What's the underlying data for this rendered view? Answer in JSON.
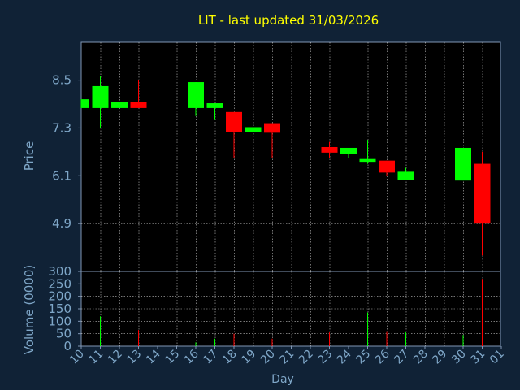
{
  "colors": {
    "background": "#102236",
    "plot_background": "#000000",
    "frame": "#7f96b4",
    "grid": "#ffffff",
    "title": "#ffff00",
    "labels": "#7fa7c8",
    "up": "#00ff00",
    "down": "#ff0000"
  },
  "chart_data": {
    "type": "candlestick",
    "title": "LIT - last updated 31/03/2026",
    "xlabel": "Day",
    "ylabel_price": "Price",
    "ylabel_volume": "Volume (0000)",
    "price_ticks": [
      "4.9",
      "6.1",
      "7.3",
      "8.5"
    ],
    "price_range": [
      3.7,
      9.45
    ],
    "volume_ticks": [
      "0",
      "50",
      "100",
      "150",
      "200",
      "250",
      "300"
    ],
    "volume_range": [
      0,
      300
    ],
    "grid": true,
    "x_ticks": [
      "10",
      "11",
      "12",
      "13",
      "14",
      "15",
      "16",
      "17",
      "18",
      "19",
      "20",
      "21",
      "22",
      "23",
      "24",
      "25",
      "26",
      "27",
      "28",
      "29",
      "30",
      "31",
      "01"
    ],
    "candles": [
      {
        "day": "10",
        "open": 7.8,
        "close": 8.02,
        "high": 8.02,
        "low": 7.8,
        "volume": 0
      },
      {
        "day": "11",
        "open": 7.8,
        "close": 8.35,
        "high": 8.6,
        "low": 7.3,
        "volume": 120
      },
      {
        "day": "12",
        "open": 7.8,
        "close": 7.95,
        "high": 7.95,
        "low": 7.8,
        "volume": 0
      },
      {
        "day": "13",
        "open": 7.95,
        "close": 7.8,
        "high": 8.5,
        "low": 7.8,
        "volume": 65
      },
      {
        "day": "16",
        "open": 7.8,
        "close": 8.45,
        "high": 8.45,
        "low": 7.6,
        "volume": 15
      },
      {
        "day": "17",
        "open": 7.8,
        "close": 7.92,
        "high": 7.92,
        "low": 7.5,
        "volume": 30
      },
      {
        "day": "18",
        "open": 7.7,
        "close": 7.2,
        "high": 7.7,
        "low": 6.55,
        "volume": 50
      },
      {
        "day": "19",
        "open": 7.2,
        "close": 7.32,
        "high": 7.5,
        "low": 7.12,
        "volume": 0
      },
      {
        "day": "20",
        "open": 7.42,
        "close": 7.18,
        "high": 7.42,
        "low": 6.55,
        "volume": 30
      },
      {
        "day": "23",
        "open": 6.82,
        "close": 6.68,
        "high": 6.95,
        "low": 6.55,
        "volume": 55
      },
      {
        "day": "24",
        "open": 6.65,
        "close": 6.8,
        "high": 6.8,
        "low": 6.55,
        "volume": 0
      },
      {
        "day": "25",
        "open": 6.45,
        "close": 6.52,
        "high": 7.0,
        "low": 6.4,
        "volume": 135
      },
      {
        "day": "26",
        "open": 6.48,
        "close": 6.18,
        "high": 6.48,
        "low": 6.1,
        "volume": 60
      },
      {
        "day": "27",
        "open": 6.0,
        "close": 6.2,
        "high": 6.3,
        "low": 6.0,
        "volume": 55
      },
      {
        "day": "30",
        "open": 5.98,
        "close": 6.8,
        "high": 6.8,
        "low": 5.98,
        "volume": 45
      },
      {
        "day": "31",
        "open": 6.4,
        "close": 4.9,
        "high": 6.7,
        "low": 4.1,
        "volume": 270
      }
    ]
  }
}
